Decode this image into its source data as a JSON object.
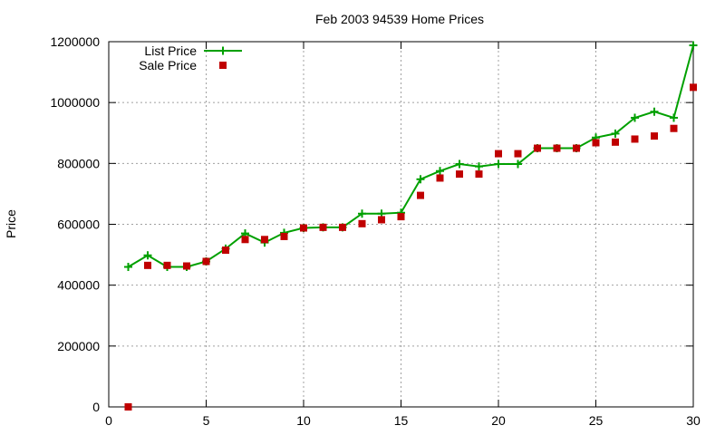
{
  "chart_data": {
    "type": "line",
    "title": "Feb 2003 94539 Home Prices",
    "xlabel": "",
    "ylabel": "Price",
    "xlim": [
      0,
      30
    ],
    "ylim": [
      0,
      1200000
    ],
    "xticks": [
      0,
      5,
      10,
      15,
      20,
      25,
      30
    ],
    "yticks": [
      0,
      200000,
      400000,
      600000,
      800000,
      1000000,
      1200000
    ],
    "grid": true,
    "legend_position": "top-left",
    "series": [
      {
        "name": "List Price",
        "style": "lines+points",
        "marker": "plus",
        "color": "#00a000",
        "x": [
          1,
          2,
          3,
          4,
          5,
          6,
          7,
          8,
          9,
          10,
          11,
          12,
          13,
          14,
          15,
          16,
          17,
          18,
          19,
          20,
          21,
          22,
          23,
          24,
          25,
          26,
          27,
          28,
          29,
          30
        ],
        "y": [
          460000,
          498000,
          460000,
          460000,
          478000,
          520000,
          570000,
          540000,
          572000,
          588000,
          590000,
          590000,
          635000,
          635000,
          638000,
          748000,
          775000,
          798000,
          790000,
          798000,
          798000,
          850000,
          850000,
          850000,
          885000,
          898000,
          950000,
          970000,
          950000,
          1188000
        ]
      },
      {
        "name": "Sale Price",
        "style": "points",
        "marker": "square",
        "color": "#c00000",
        "x": [
          1,
          2,
          3,
          4,
          5,
          6,
          7,
          8,
          9,
          10,
          11,
          12,
          13,
          14,
          15,
          16,
          17,
          18,
          19,
          20,
          21,
          22,
          23,
          24,
          25,
          26,
          27,
          28,
          29,
          30
        ],
        "y": [
          0,
          465000,
          465000,
          463000,
          478000,
          515000,
          550000,
          550000,
          560000,
          588000,
          590000,
          590000,
          602000,
          615000,
          625000,
          695000,
          752000,
          765000,
          765000,
          832000,
          832000,
          850000,
          850000,
          850000,
          868000,
          870000,
          880000,
          890000,
          915000,
          1050000
        ]
      }
    ]
  }
}
